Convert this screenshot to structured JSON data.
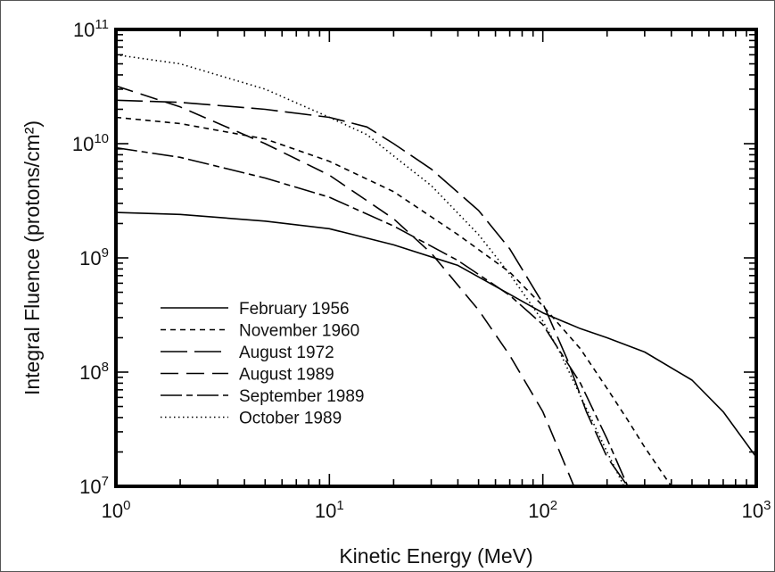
{
  "chart_data": {
    "type": "line",
    "title": "",
    "xlabel": "Kinetic Energy (MeV)",
    "ylabel": "Integral Fluence (protons/cm²)",
    "xscale": "log",
    "yscale": "log",
    "xlim": [
      1,
      1000
    ],
    "ylim": [
      10000000,
      100000000000
    ],
    "grid": false,
    "legend_position": "lower-left",
    "x_ticks": [
      {
        "value": 1,
        "base": "10",
        "exp": "0"
      },
      {
        "value": 10,
        "base": "10",
        "exp": "1"
      },
      {
        "value": 100,
        "base": "10",
        "exp": "2"
      },
      {
        "value": 1000,
        "base": "10",
        "exp": "3"
      }
    ],
    "y_ticks": [
      {
        "value": 10000000,
        "base": "10",
        "exp": "7"
      },
      {
        "value": 100000000,
        "base": "10",
        "exp": "8"
      },
      {
        "value": 1000000000,
        "base": "10",
        "exp": "9"
      },
      {
        "value": 10000000000,
        "base": "10",
        "exp": "10"
      },
      {
        "value": 100000000000,
        "base": "10",
        "exp": "11"
      }
    ],
    "series": [
      {
        "name": "February 1956",
        "dash": "solid",
        "x": [
          1,
          2,
          5,
          10,
          20,
          40,
          70,
          100,
          150,
          200,
          300,
          500,
          700,
          1000
        ],
        "y": [
          2500000000,
          2400000000,
          2100000000,
          1800000000,
          1300000000,
          860000000,
          480000000,
          330000000,
          240000000,
          200000000,
          150000000,
          85000000,
          45000000,
          18000000
        ]
      },
      {
        "name": "November 1960",
        "dash": "short-dash",
        "x": [
          1,
          2,
          5,
          10,
          20,
          40,
          70,
          100,
          150,
          200,
          250,
          300,
          400
        ],
        "y": [
          17000000000,
          15000000000,
          11000000000,
          7000000000,
          3800000000,
          1600000000,
          750000000,
          380000000,
          160000000,
          72000000,
          38000000,
          22000000,
          10000000
        ]
      },
      {
        "name": "August 1972",
        "dash": "long-dash",
        "x": [
          1,
          2,
          5,
          10,
          15,
          20,
          30,
          50,
          70,
          100,
          130,
          160,
          200,
          250
        ],
        "y": [
          24000000000,
          23000000000,
          20000000000,
          17000000000,
          14000000000,
          10000000000,
          6000000000,
          2600000000,
          1200000000,
          400000000,
          130000000,
          45000000,
          18000000,
          10000000
        ]
      },
      {
        "name": "August 1989",
        "dash": "medium-dash",
        "x": [
          1,
          2,
          5,
          10,
          20,
          30,
          50,
          70,
          100,
          120,
          140
        ],
        "y": [
          32000000000,
          21000000000,
          10000000000,
          5300000000,
          2200000000,
          1100000000,
          350000000,
          140000000,
          45000000,
          20000000,
          10000000
        ]
      },
      {
        "name": "September 1989",
        "dash": "dash-dot",
        "x": [
          1,
          2,
          5,
          10,
          20,
          40,
          70,
          100,
          150,
          200,
          250
        ],
        "y": [
          9200000000,
          7600000000,
          5000000000,
          3400000000,
          1900000000,
          950000000,
          470000000,
          260000000,
          80000000,
          26000000,
          10000000
        ]
      },
      {
        "name": "October 1989",
        "dash": "dotted",
        "x": [
          1,
          2,
          5,
          10,
          15,
          20,
          30,
          50,
          70,
          100,
          120,
          150,
          200,
          240
        ],
        "y": [
          60000000000,
          50000000000,
          30000000000,
          17000000000,
          12000000000,
          7800000000,
          4300000000,
          1600000000,
          720000000,
          280000000,
          150000000,
          62000000,
          20000000,
          10000000
        ]
      }
    ]
  }
}
